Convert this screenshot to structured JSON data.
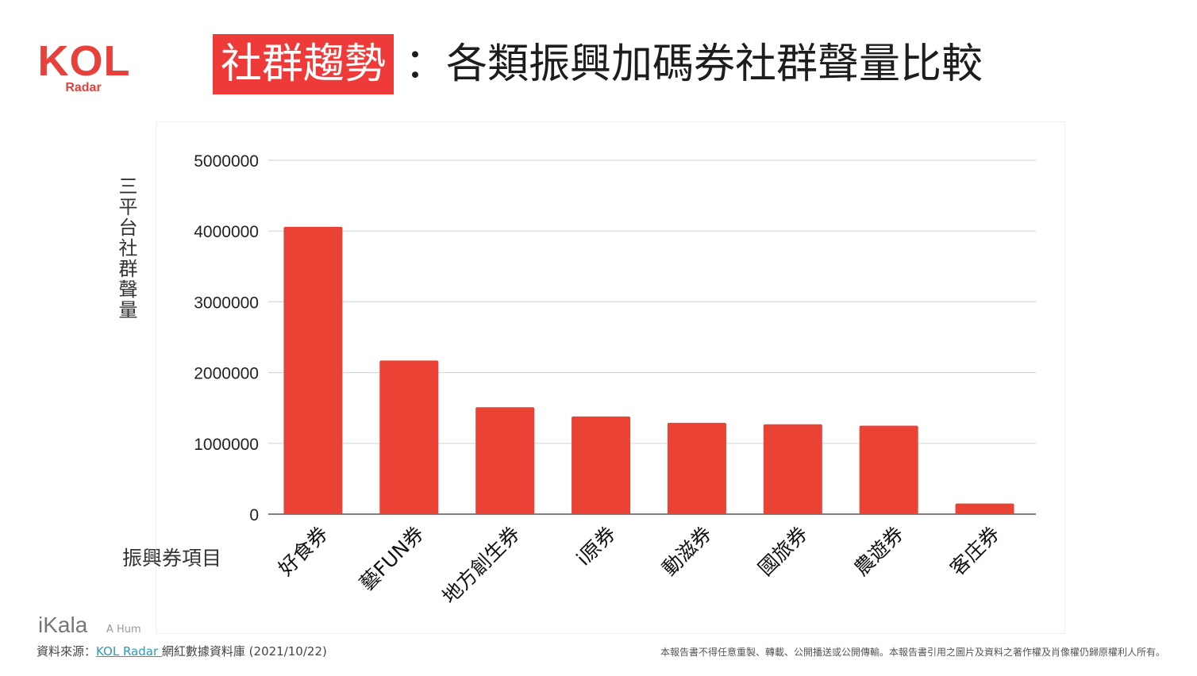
{
  "logo": {
    "brand": "KOL",
    "sub": "Radar"
  },
  "title": {
    "tag": "社群趨勢",
    "rest": "：各類振興加碼券社群聲量比較"
  },
  "chart_data": {
    "type": "bar",
    "ylabel": "三平台社群聲量",
    "xlabel": "振興券項目",
    "categories": [
      "好食券",
      "藝FUN券",
      "地方創生券",
      "i原券",
      "動滋券",
      "國旅券",
      "農遊券",
      "客庄券"
    ],
    "values": [
      4060000,
      2170000,
      1510000,
      1380000,
      1290000,
      1270000,
      1250000,
      150000
    ],
    "ylim": [
      0,
      5000000
    ],
    "yticks": [
      "0",
      "1000000",
      "2000000",
      "3000000",
      "4000000",
      "5000000"
    ],
    "grid": true,
    "bar_color": "#ea4335"
  },
  "footer": {
    "ikala": "iKala",
    "ikala_sub": "A Hum",
    "source_prefix": "資料來源：",
    "source_link": "KOL Radar ",
    "source_suffix": "網紅數據資料庫 (2021/10/22)",
    "disclaimer": "本報告書不得任意重製、轉載、公開播送或公開傳輸。本報告書引用之圖片及資料之著作權及肖像權仍歸原權利人所有。"
  }
}
